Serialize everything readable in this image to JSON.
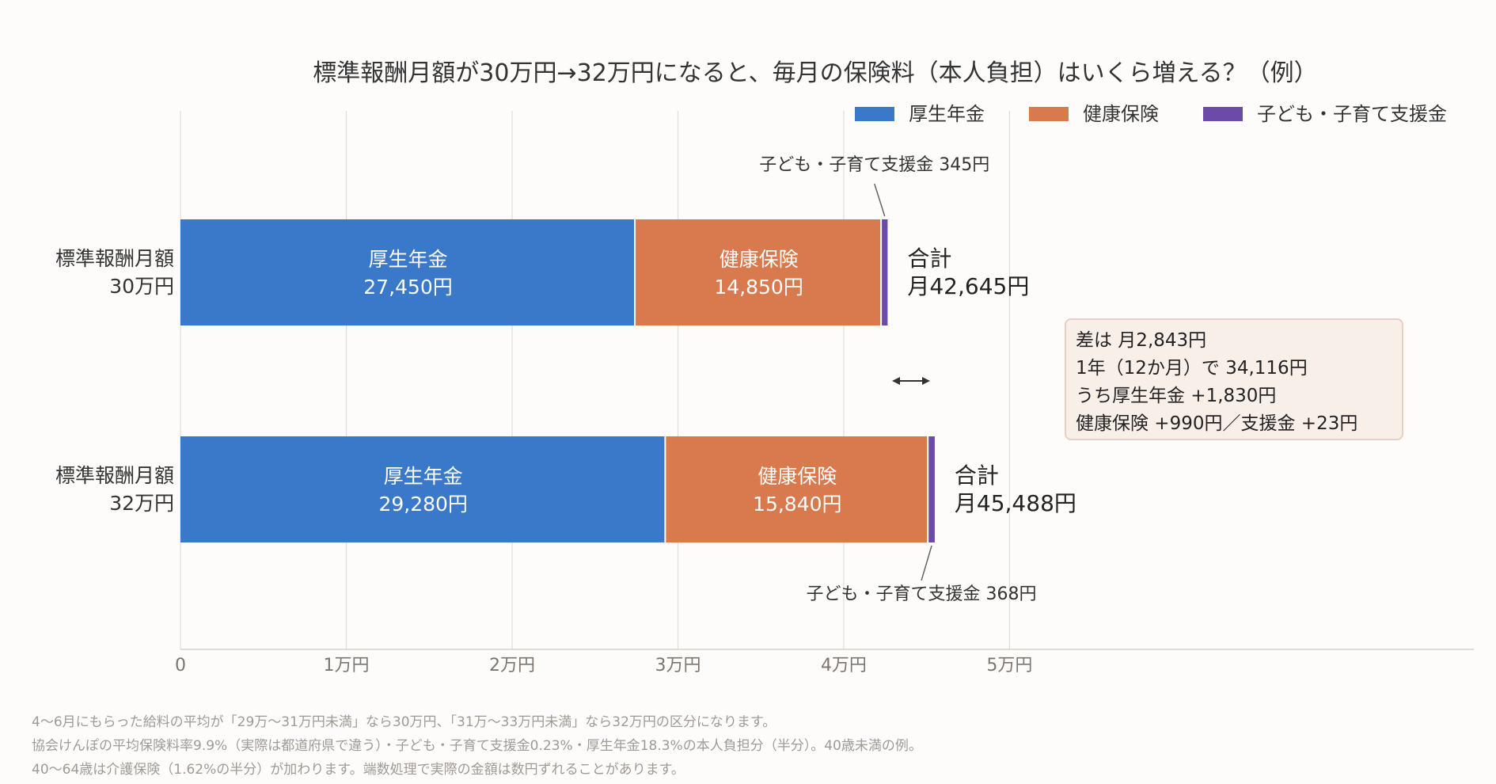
{
  "chart_data": {
    "type": "bar",
    "orientation": "horizontal",
    "stacked": true,
    "title": "標準報酬月額が30万円→32万円になると、毎月の保険料（本人負担）はいくら増える？（例）",
    "categories": [
      "標準報酬月額\n30万円",
      "標準報酬月額\n32万円"
    ],
    "series": [
      {
        "name": "厚生年金",
        "color": "#3a78c9",
        "values": [
          27450,
          29280
        ],
        "value_labels": [
          "27,450円",
          "29,280円"
        ]
      },
      {
        "name": "健康保険",
        "color": "#d97a4e",
        "values": [
          14850,
          15840
        ],
        "value_labels": [
          "14,850円",
          "15,840円"
        ]
      },
      {
        "name": "子ども・子育て支援金",
        "color": "#6b4aa8",
        "values": [
          345,
          368
        ]
      }
    ],
    "callouts": [
      "子ども・子育て支援金 345円",
      "子ども・子育て支援金 368円"
    ],
    "totals": [
      {
        "label": "合計",
        "value": "月42,645円"
      },
      {
        "label": "合計",
        "value": "月45,488円"
      }
    ],
    "xlim": [
      0,
      78000
    ],
    "xticks": [
      0,
      10000,
      20000,
      30000,
      40000,
      50000
    ],
    "xtick_labels": [
      "0",
      "1万円",
      "2万円",
      "3万円",
      "4万円",
      "5万円"
    ],
    "grid": true,
    "legend": "top-right",
    "diff_box": [
      "差は 月2,843円",
      "1年（12か月）で 34,116円",
      "うち厚生年金 +1,830円",
      "健康保険 +990円／支援金 +23円"
    ]
  },
  "notes": [
    "4〜6月にもらった給料の平均が「29万〜31万円未満」なら30万円、「31万〜33万円未満」なら32万円の区分になります。",
    "協会けんぽの平均保険料率9.9%（実際は都道府県で違う）・子ども・子育て支援金0.23%・厚生年金18.3%の本人負担分（半分）。40歳未満の例。",
    "40〜64歳は介護保険（1.62%の半分）が加わります。端数処理で実際の金額は数円ずれることがあります。"
  ]
}
